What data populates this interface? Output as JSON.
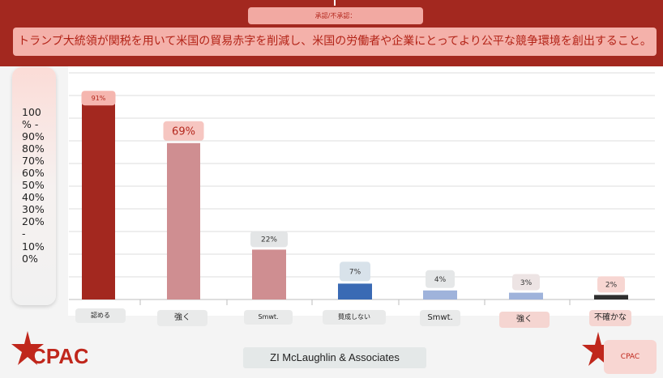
{
  "header": {
    "tab_label": "承認/不承認：",
    "question": "トランプ大統領が関税を用いて米国の貿易赤字を削減し、米国の労働者や企業にとってより公平な競争環境を創出すること。"
  },
  "footer": {
    "source": "ZI McLaughlin & Associates",
    "logo_text": "CPAC",
    "logo_right_text": "CPAC"
  },
  "colors": {
    "band": "#a3281f",
    "approve_strong": "#a3281f",
    "approve_soft": "#cf8e91",
    "disapprove_strong": "#3a6ab4",
    "disapprove_soft": "#9fb3db",
    "unsure": "#2f2f2f"
  },
  "chart_data": {
    "type": "bar",
    "title": "",
    "xlabel": "",
    "ylabel": "",
    "ylim": [
      0,
      100
    ],
    "y_tick_labels": [
      "100",
      "% -",
      "90%",
      "80%",
      "70%",
      "60%",
      "50%",
      "40%",
      "30%",
      "20%",
      "-",
      "10%",
      "0%"
    ],
    "categories": [
      "認める",
      "強く",
      "Smwt.",
      "賛成しない",
      "Smwt.",
      "強く",
      "不確かな"
    ],
    "values": [
      91,
      69,
      22,
      7,
      4,
      3,
      2
    ],
    "value_labels": [
      "91%",
      "69%",
      "22%",
      "7%",
      "4%",
      "3%",
      "2%"
    ],
    "bar_colors": [
      "#a3281f",
      "#cf8e91",
      "#cf8e91",
      "#3a6ab4",
      "#9fb3db",
      "#9fb3db",
      "#2f2f2f"
    ],
    "grid": true
  }
}
